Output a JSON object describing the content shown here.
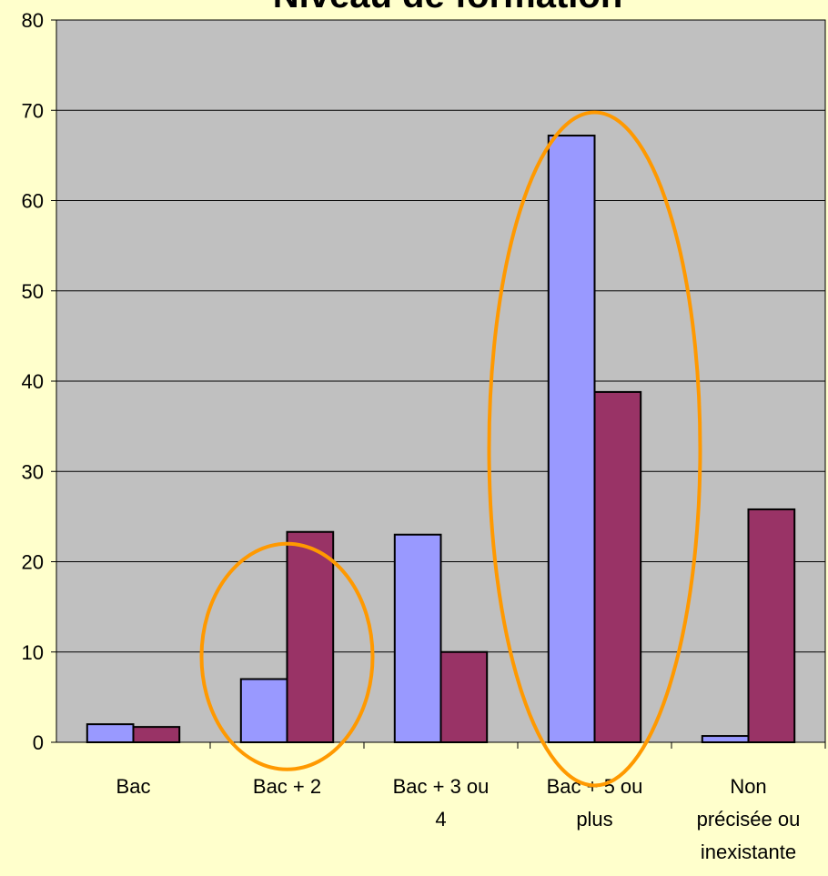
{
  "chart_data": {
    "type": "bar",
    "title": "Niveau de formation",
    "categories": [
      [
        "Bac"
      ],
      [
        "Bac + 2"
      ],
      [
        "Bac + 3 ou",
        "4"
      ],
      [
        "Bac + 5 ou",
        "plus"
      ],
      [
        "Non",
        "précisée ou",
        "inexistante"
      ]
    ],
    "series": [
      {
        "color": "#9999ff",
        "values": [
          2,
          7,
          23,
          67.2,
          0.7
        ]
      },
      {
        "color": "#993366",
        "values": [
          1.7,
          23.3,
          10,
          38.8,
          25.8
        ]
      }
    ],
    "ylim": [
      0,
      80
    ],
    "yticks": [
      0,
      10,
      20,
      30,
      40,
      50,
      60,
      70,
      80
    ],
    "grid": true,
    "plot_background": "#c0c0c0",
    "highlight_color": "#ff9900",
    "highlighted_categories": [
      "Bac + 2",
      "Bac + 5 ou plus"
    ]
  }
}
